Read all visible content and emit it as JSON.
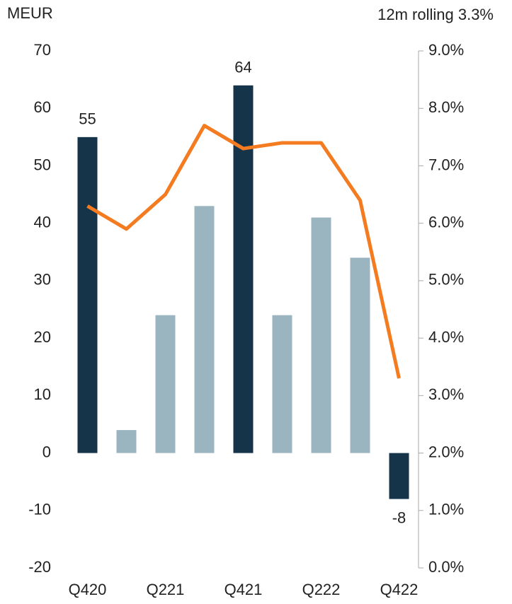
{
  "chart_data": {
    "type": "bar",
    "y_label": "MEUR",
    "annotation": "12m rolling 3.3%",
    "categories": [
      "Q420",
      null,
      "Q221",
      null,
      "Q421",
      null,
      "Q222",
      null,
      "Q422"
    ],
    "series": [
      {
        "type": "bar",
        "colors": [
          "#15344a",
          "#9bb5c0",
          "#9bb5c0",
          "#9bb5c0",
          "#15344a",
          "#9bb5c0",
          "#9bb5c0",
          "#9bb5c0",
          "#15344a"
        ],
        "values": [
          55,
          4,
          24,
          43,
          64,
          24,
          41,
          34,
          -8
        ],
        "value_labels": [
          "55",
          null,
          null,
          null,
          "64",
          null,
          null,
          null,
          "-8"
        ]
      },
      {
        "type": "line",
        "axis": "y2",
        "color": "#f47b20",
        "values": [
          6.3,
          5.9,
          6.5,
          7.7,
          7.3,
          7.4,
          7.4,
          6.4,
          3.3
        ]
      }
    ],
    "ylim": [
      -20,
      70
    ],
    "yticks": [
      -20,
      -10,
      0,
      10,
      20,
      30,
      40,
      50,
      60,
      70
    ],
    "y2lim": [
      0,
      9
    ],
    "y2ticks": [
      {
        "value": 0,
        "label": "0.0%"
      },
      {
        "value": 1,
        "label": "1.0%"
      },
      {
        "value": 2,
        "label": "2.0%"
      },
      {
        "value": 3,
        "label": "3.0%"
      },
      {
        "value": 4,
        "label": "4.0%"
      },
      {
        "value": 5,
        "label": "5.0%"
      },
      {
        "value": 6,
        "label": "6.0%"
      },
      {
        "value": 7,
        "label": "7.0%"
      },
      {
        "value": 8,
        "label": "8.0%"
      },
      {
        "value": 9,
        "label": "9.0%"
      }
    ]
  }
}
